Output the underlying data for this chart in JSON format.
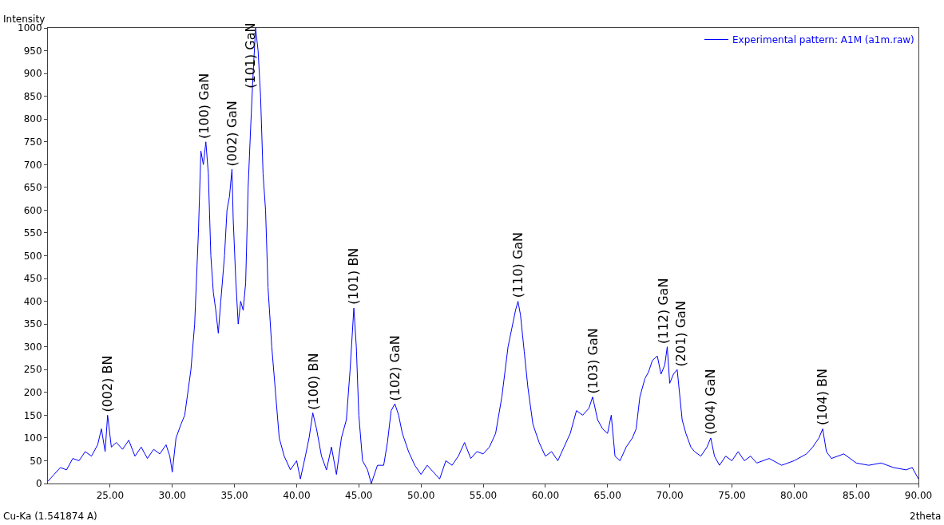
{
  "chart_data": {
    "type": "line",
    "xlabel": "2theta",
    "ylabel": "Intensity",
    "x": [
      20.0,
      20.5,
      21,
      21.5,
      22,
      22.5,
      23,
      23.5,
      24,
      24.3,
      24.6,
      24.8,
      25.1,
      25.5,
      26,
      26.5,
      27,
      27.5,
      28,
      28.5,
      29,
      29.5,
      29.8,
      30,
      30.3,
      30.7,
      31,
      31.5,
      31.8,
      32.1,
      32.3,
      32.5,
      32.7,
      32.9,
      33.1,
      33.3,
      33.5,
      33.7,
      33.9,
      34.2,
      34.4,
      34.6,
      34.8,
      34.9,
      35.1,
      35.3,
      35.5,
      35.7,
      35.9,
      36.1,
      36.3,
      36.5,
      36.7,
      36.9,
      37.1,
      37.3,
      37.5,
      37.7,
      38,
      38.3,
      38.6,
      39,
      39.5,
      40,
      40.3,
      40.7,
      41,
      41.3,
      41.6,
      42,
      42.4,
      42.8,
      43.2,
      43.6,
      44,
      44.3,
      44.6,
      44.8,
      45,
      45.3,
      45.7,
      46,
      46.5,
      47,
      47.3,
      47.6,
      47.9,
      48.2,
      48.5,
      49,
      49.5,
      50,
      50.5,
      51,
      51.5,
      52,
      52.5,
      53,
      53.5,
      54,
      54.5,
      55,
      55.5,
      56,
      56.5,
      57,
      57.3,
      57.6,
      57.8,
      58,
      58.3,
      58.6,
      59,
      59.5,
      60,
      60.5,
      61,
      61.5,
      62,
      62.5,
      63,
      63.5,
      63.8,
      64.2,
      64.6,
      65,
      65.3,
      65.6,
      66,
      66.5,
      67,
      67.3,
      67.6,
      68,
      68.3,
      68.6,
      69,
      69.3,
      69.6,
      69.8,
      70,
      70.3,
      70.6,
      71,
      71.3,
      71.7,
      72,
      72.5,
      73,
      73.3,
      73.6,
      74,
      74.5,
      75,
      75.5,
      76,
      76.5,
      77,
      78,
      79,
      80,
      81,
      81.5,
      82,
      82.3,
      82.6,
      83,
      84,
      85,
      86,
      87,
      88,
      89,
      89.5,
      90
    ],
    "series": [
      {
        "name": "Experimental pattern: A1M (a1m.raw)",
        "color": "#0000ff",
        "values": [
          5,
          20,
          35,
          30,
          55,
          50,
          70,
          60,
          85,
          120,
          70,
          150,
          80,
          90,
          75,
          95,
          60,
          80,
          55,
          75,
          65,
          85,
          60,
          25,
          100,
          130,
          150,
          250,
          350,
          550,
          730,
          700,
          750,
          680,
          500,
          420,
          380,
          330,
          400,
          500,
          600,
          630,
          690,
          580,
          450,
          350,
          400,
          380,
          440,
          650,
          780,
          900,
          1000,
          950,
          850,
          680,
          600,
          430,
          300,
          200,
          100,
          60,
          30,
          50,
          10,
          60,
          100,
          155,
          120,
          60,
          30,
          80,
          20,
          100,
          140,
          250,
          385,
          300,
          150,
          50,
          30,
          0,
          40,
          40,
          90,
          160,
          175,
          150,
          110,
          70,
          40,
          20,
          40,
          25,
          10,
          50,
          40,
          60,
          90,
          55,
          70,
          65,
          80,
          110,
          190,
          300,
          340,
          380,
          400,
          370,
          290,
          210,
          130,
          90,
          60,
          70,
          50,
          80,
          110,
          160,
          150,
          165,
          190,
          140,
          120,
          110,
          150,
          60,
          50,
          80,
          100,
          120,
          190,
          230,
          245,
          270,
          280,
          240,
          260,
          300,
          220,
          240,
          250,
          140,
          110,
          80,
          70,
          60,
          80,
          100,
          60,
          40,
          60,
          50,
          70,
          50,
          60,
          45,
          55,
          40,
          50,
          65,
          80,
          100,
          120,
          70,
          55,
          65,
          45,
          40,
          45,
          35,
          30,
          35,
          10
        ]
      }
    ],
    "xlim": [
      20,
      90
    ],
    "xticks": [
      {
        "value": 25,
        "label": "25.00"
      },
      {
        "value": 30,
        "label": "30.00"
      },
      {
        "value": 35,
        "label": "35.00"
      },
      {
        "value": 40,
        "label": "40.00"
      },
      {
        "value": 45,
        "label": "45.00"
      },
      {
        "value": 50,
        "label": "50.00"
      },
      {
        "value": 55,
        "label": "55.00"
      },
      {
        "value": 60,
        "label": "60.00"
      },
      {
        "value": 65,
        "label": "65.00"
      },
      {
        "value": 70,
        "label": "70.00"
      },
      {
        "value": 75,
        "label": "75.00"
      },
      {
        "value": 80,
        "label": "80.00"
      },
      {
        "value": 85,
        "label": "85.00"
      },
      {
        "value": 90,
        "label": "90.00"
      }
    ],
    "ylim": [
      0,
      1000
    ],
    "yticks": [
      0,
      50,
      100,
      150,
      200,
      250,
      300,
      350,
      400,
      450,
      500,
      550,
      600,
      650,
      700,
      750,
      800,
      850,
      900,
      950,
      1000
    ],
    "legend": "top right",
    "marker": "none",
    "line_style": "solid",
    "annotations": [
      {
        "text": "(002) BN",
        "x": 24.8,
        "y": 150
      },
      {
        "text": "(100) GaN",
        "x": 32.6,
        "y": 750
      },
      {
        "text": "(002) GaN",
        "x": 34.8,
        "y": 690
      },
      {
        "text": "(101) GaN",
        "x": 36.3,
        "y": 860
      },
      {
        "text": "(100) BN",
        "x": 41.3,
        "y": 155
      },
      {
        "text": "(101) BN",
        "x": 44.6,
        "y": 385
      },
      {
        "text": "(102) GaN",
        "x": 47.9,
        "y": 175
      },
      {
        "text": "(110) GaN",
        "x": 57.8,
        "y": 400
      },
      {
        "text": "(103) GaN",
        "x": 63.8,
        "y": 190
      },
      {
        "text": "(112) GaN",
        "x": 69.8,
        "y": 300
      },
      {
        "text": "(201) GaN",
        "x": 70.6,
        "y": 250
      },
      {
        "text": "(004) GaN",
        "x": 73.3,
        "y": 100
      },
      {
        "text": "(104) BN",
        "x": 82.3,
        "y": 120
      },
      "Cu-Ka (1.541874 A)"
    ]
  }
}
